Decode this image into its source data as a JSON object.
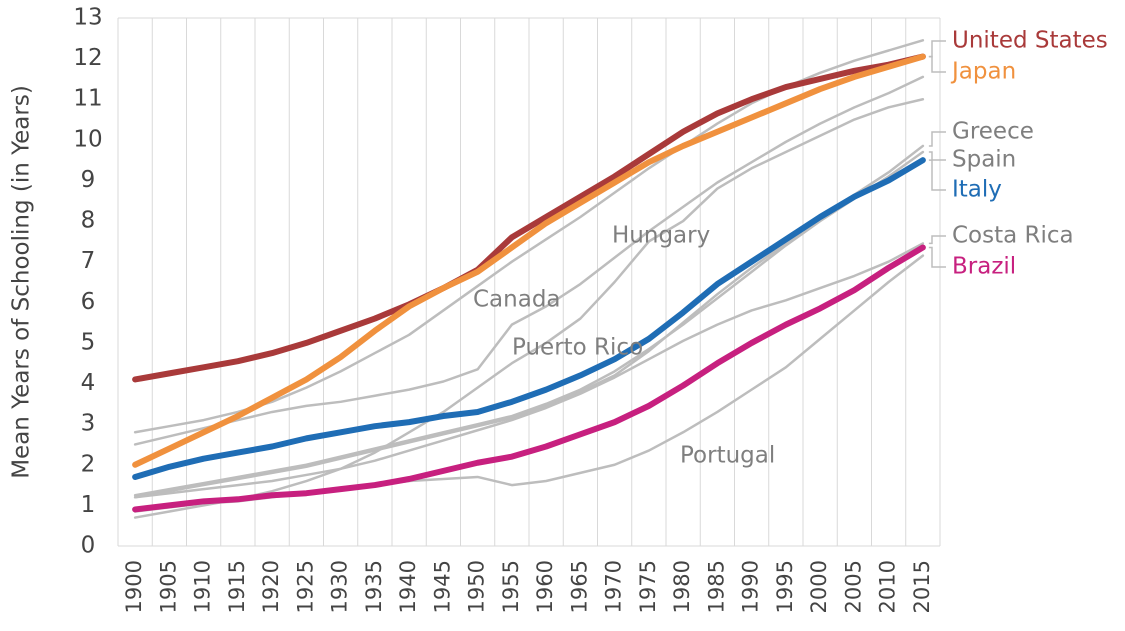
{
  "chart_data": {
    "type": "line",
    "y_label": "Mean Years of Schooling (in Years)",
    "categories": [
      "1900",
      "1905",
      "1910",
      "1915",
      "1920",
      "1925",
      "1930",
      "1935",
      "1940",
      "1945",
      "1950",
      "1955",
      "1960",
      "1965",
      "1970",
      "1975",
      "1980",
      "1985",
      "1990",
      "1995",
      "2000",
      "2005",
      "2010",
      "2015"
    ],
    "ylim": [
      0,
      13
    ],
    "yticks": [
      0,
      1,
      2,
      3,
      4,
      5,
      6,
      7,
      8,
      9,
      10,
      11,
      12,
      13
    ],
    "series": [
      {
        "name": "Canada",
        "color": "#bdbdbd",
        "values": [
          2.8,
          2.95,
          3.1,
          3.3,
          3.55,
          3.9,
          4.3,
          4.75,
          5.2,
          5.8,
          6.4,
          7.0,
          7.55,
          8.1,
          8.7,
          9.3,
          9.85,
          10.4,
          10.9,
          11.3,
          11.65,
          11.95,
          12.2,
          12.45
        ]
      },
      {
        "name": "Hungary",
        "color": "#bdbdbd",
        "values": [
          2.5,
          2.7,
          2.9,
          3.1,
          3.3,
          3.45,
          3.55,
          3.7,
          3.85,
          4.05,
          4.35,
          5.45,
          5.9,
          6.45,
          7.1,
          7.75,
          8.35,
          8.95,
          9.45,
          9.95,
          10.4,
          10.8,
          11.15,
          11.55
        ]
      },
      {
        "name": "Puerto Rico",
        "color": "#bdbdbd",
        "values": [
          0.7,
          0.85,
          1.0,
          1.15,
          1.35,
          1.6,
          1.9,
          2.3,
          2.8,
          3.3,
          3.9,
          4.5,
          5.0,
          5.6,
          6.5,
          7.5,
          8.0,
          8.8,
          9.3,
          9.7,
          10.1,
          10.5,
          10.8,
          11.0
        ]
      },
      {
        "name": "Portugal",
        "color": "#bdbdbd",
        "values": [
          0.85,
          0.95,
          1.05,
          1.1,
          1.2,
          1.3,
          1.4,
          1.5,
          1.6,
          1.65,
          1.7,
          1.5,
          1.6,
          1.8,
          2.0,
          2.35,
          2.8,
          3.3,
          3.85,
          4.4,
          5.1,
          5.8,
          6.5,
          7.15
        ]
      },
      {
        "name": "Greece",
        "color": "#7f7f7f",
        "values": [
          1.2,
          1.35,
          1.5,
          1.65,
          1.8,
          1.95,
          2.15,
          2.35,
          2.55,
          2.75,
          2.95,
          3.15,
          3.45,
          3.8,
          4.2,
          4.8,
          5.5,
          6.2,
          6.85,
          7.45,
          8.05,
          8.65,
          9.2,
          9.85
        ]
      },
      {
        "name": "Spain",
        "color": "#7f7f7f",
        "values": [
          1.25,
          1.4,
          1.55,
          1.7,
          1.85,
          2.0,
          2.2,
          2.4,
          2.6,
          2.8,
          3.0,
          3.2,
          3.5,
          3.85,
          4.3,
          4.85,
          5.45,
          6.1,
          6.75,
          7.4,
          8.0,
          8.55,
          9.1,
          9.7
        ]
      },
      {
        "name": "Costa Rica",
        "color": "#7f7f7f",
        "values": [
          1.2,
          1.3,
          1.4,
          1.5,
          1.6,
          1.75,
          1.9,
          2.1,
          2.35,
          2.6,
          2.85,
          3.1,
          3.4,
          3.75,
          4.15,
          4.6,
          5.05,
          5.45,
          5.8,
          6.05,
          6.35,
          6.65,
          7.0,
          7.45
        ]
      },
      {
        "name": "United States",
        "color": "#a93a3a",
        "values": [
          4.1,
          4.25,
          4.4,
          4.55,
          4.75,
          5.0,
          5.3,
          5.6,
          5.95,
          6.35,
          6.8,
          7.6,
          8.1,
          8.6,
          9.1,
          9.65,
          10.2,
          10.65,
          11.0,
          11.3,
          11.5,
          11.7,
          11.85,
          12.05
        ]
      },
      {
        "name": "Japan",
        "color": "#f0913e",
        "values": [
          2.0,
          2.4,
          2.8,
          3.2,
          3.65,
          4.1,
          4.65,
          5.3,
          5.9,
          6.35,
          6.75,
          7.35,
          7.95,
          8.45,
          8.95,
          9.45,
          9.85,
          10.2,
          10.55,
          10.9,
          11.25,
          11.55,
          11.8,
          12.05
        ]
      },
      {
        "name": "Italy",
        "color": "#1f6db5",
        "values": [
          1.7,
          1.95,
          2.15,
          2.3,
          2.45,
          2.65,
          2.8,
          2.95,
          3.05,
          3.2,
          3.3,
          3.55,
          3.85,
          4.2,
          4.6,
          5.1,
          5.75,
          6.45,
          7.0,
          7.55,
          8.1,
          8.6,
          9.0,
          9.5
        ]
      },
      {
        "name": "Brazil",
        "color": "#c7207f",
        "values": [
          0.9,
          1.0,
          1.1,
          1.15,
          1.25,
          1.3,
          1.4,
          1.5,
          1.65,
          1.85,
          2.05,
          2.2,
          2.45,
          2.75,
          3.05,
          3.45,
          3.95,
          4.5,
          5.0,
          5.45,
          5.85,
          6.3,
          6.85,
          7.35
        ]
      }
    ]
  }
}
